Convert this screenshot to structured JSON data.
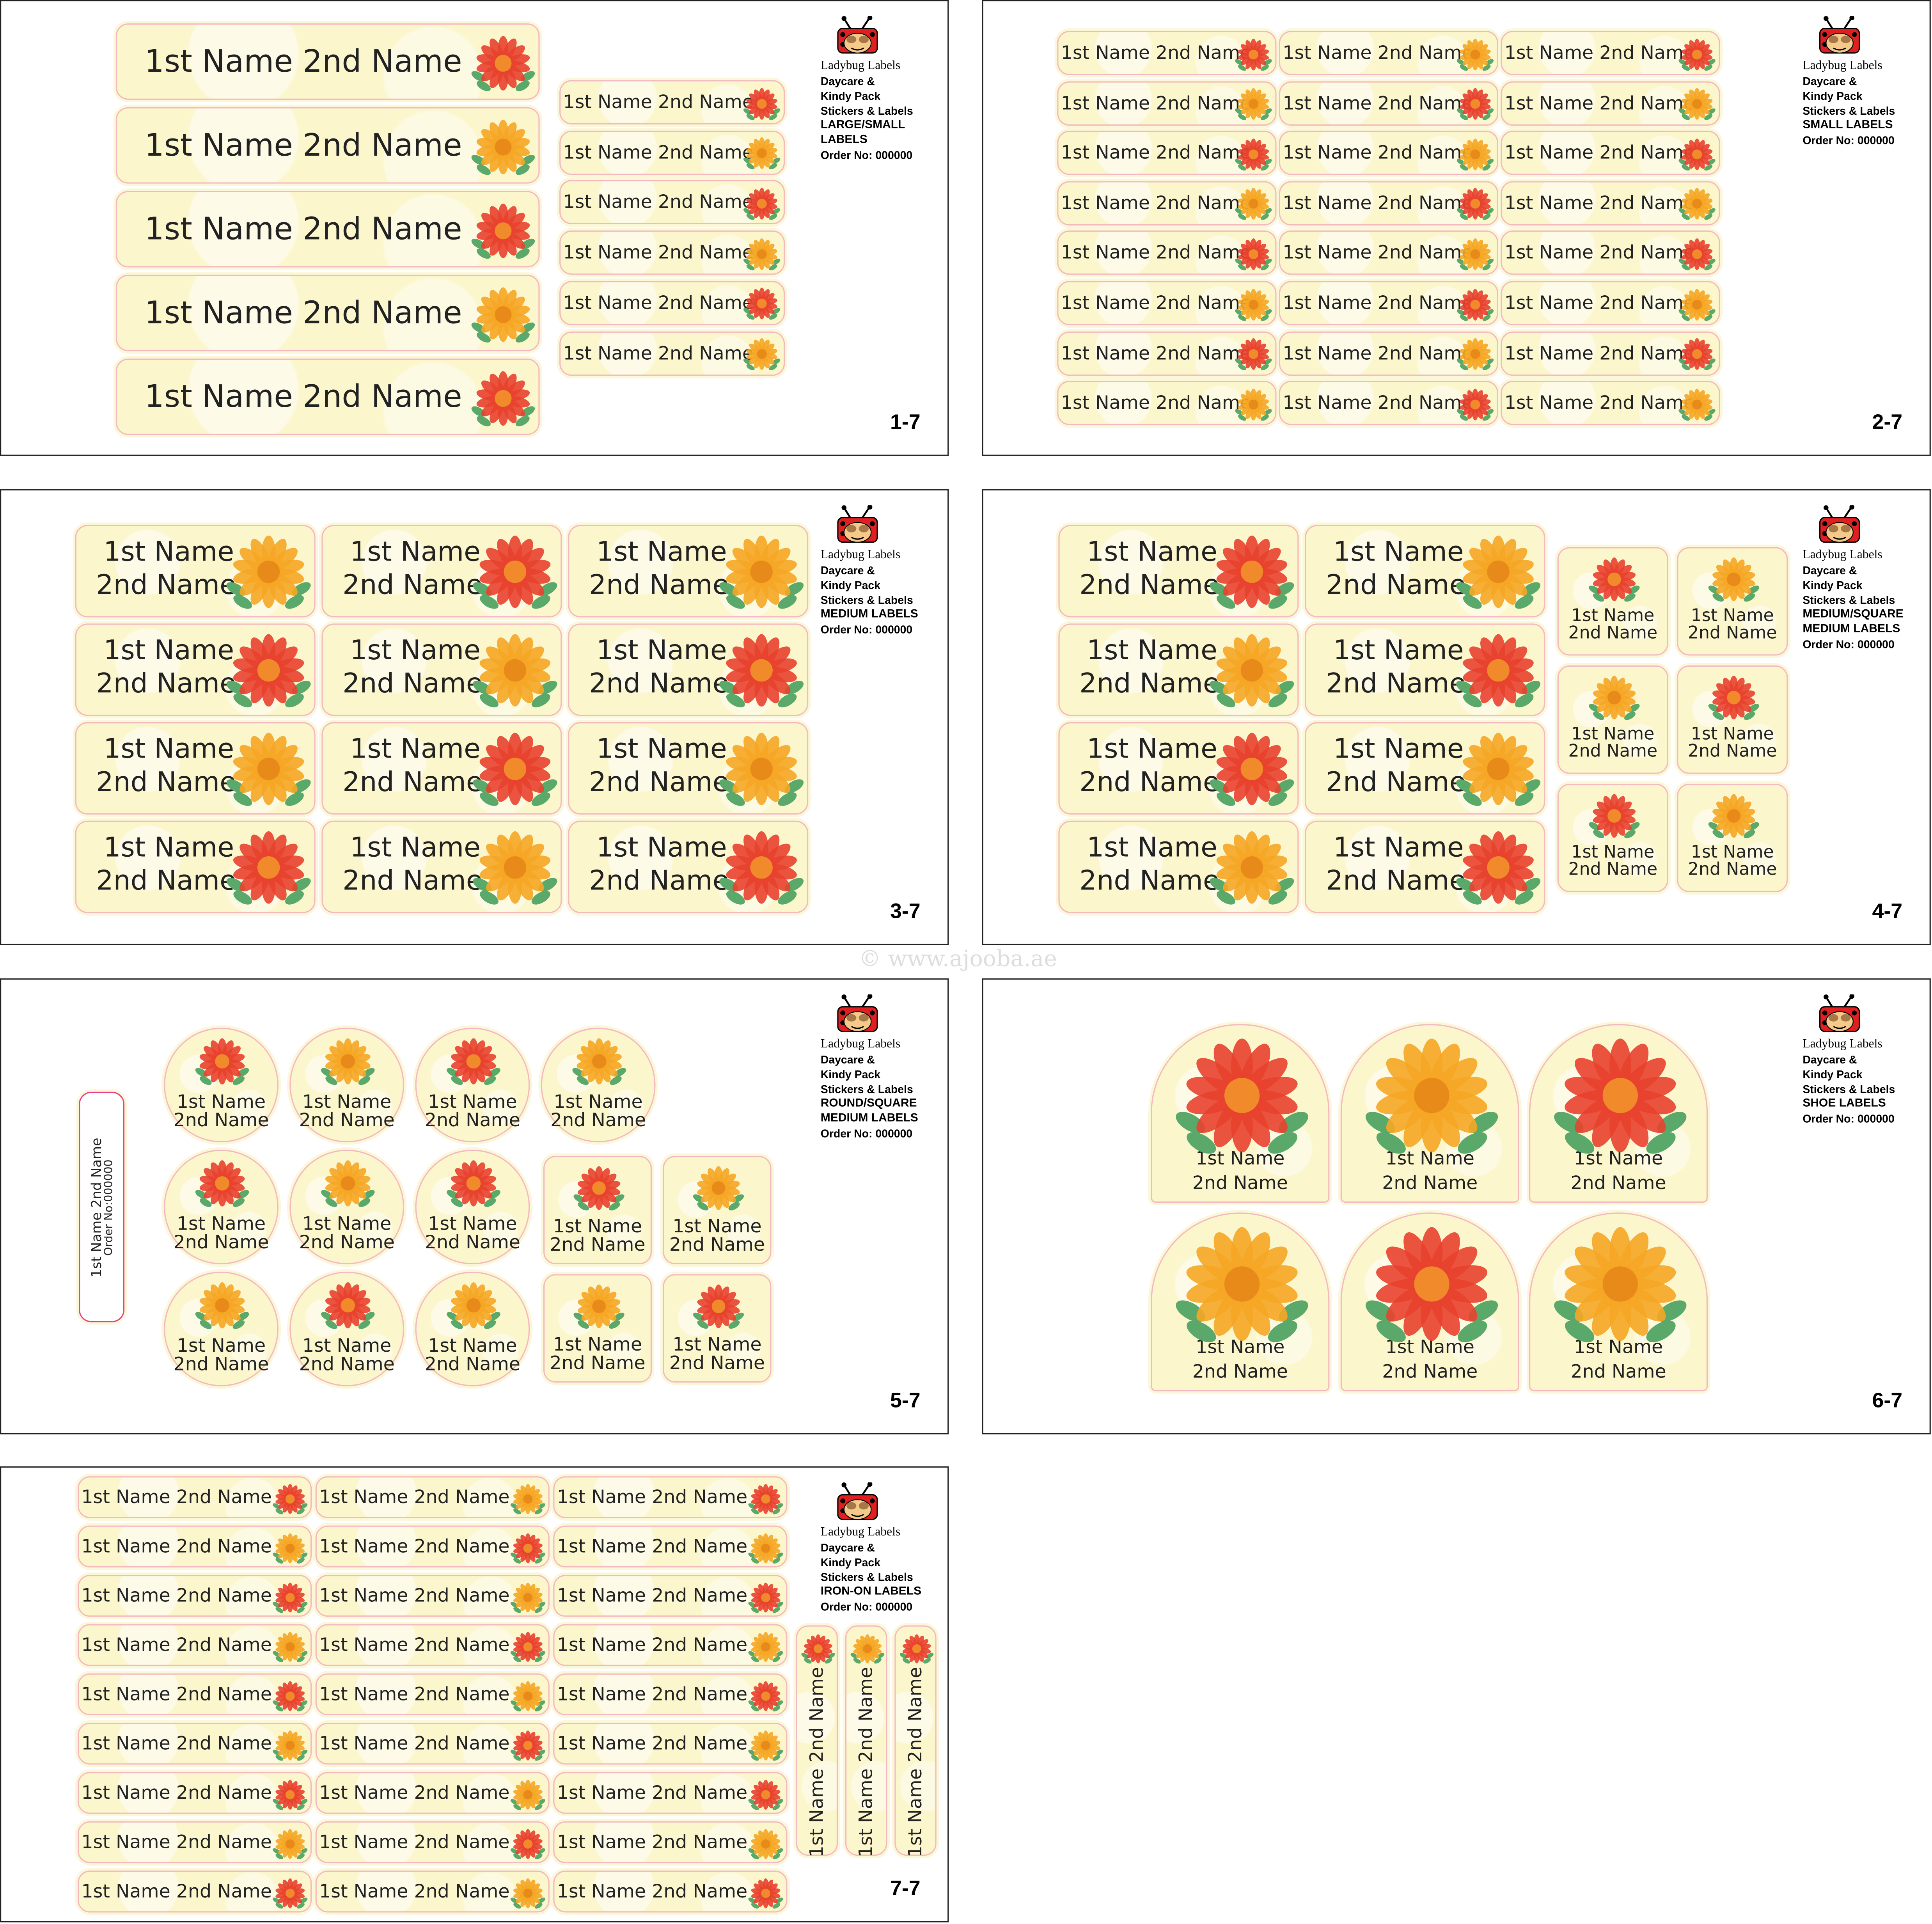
{
  "watermark": "© www.ajooba.ae",
  "brand": {
    "name": "Ladybug Labels",
    "lines": [
      "Daycare &",
      "Kindy Pack",
      "Stickers & Labels"
    ]
  },
  "label": {
    "one_line": "1st Name 2nd Name",
    "first": "1st Name",
    "second": "2nd Name",
    "order_short": "Order No:000000"
  },
  "colors": {
    "label_bg": "#fbf6cc",
    "label_border": "#f4b8c0",
    "flower_red": "#e8412e",
    "flower_orange": "#f5a623",
    "leaf": "#5aa86a"
  },
  "panels": [
    {
      "page": "1-7",
      "type_lines": [
        "LARGE/SMALL",
        "LABELS"
      ],
      "order": "Order No: 000000"
    },
    {
      "page": "2-7",
      "type_lines": [
        "SMALL LABELS"
      ],
      "order": "Order No: 000000"
    },
    {
      "page": "3-7",
      "type_lines": [
        "MEDIUM LABELS"
      ],
      "order": "Order No: 000000"
    },
    {
      "page": "4-7",
      "type_lines": [
        "MEDIUM/SQUARE",
        "MEDIUM LABELS"
      ],
      "order": "Order No: 000000"
    },
    {
      "page": "5-7",
      "type_lines": [
        "ROUND/SQUARE",
        "MEDIUM LABELS"
      ],
      "order": "Order No: 000000"
    },
    {
      "page": "6-7",
      "type_lines": [
        "SHOE LABELS"
      ],
      "order": "Order No: 000000"
    },
    {
      "page": "7-7",
      "type_lines": [
        "IRON-ON LABELS"
      ],
      "order": "Order No: 000000"
    }
  ]
}
